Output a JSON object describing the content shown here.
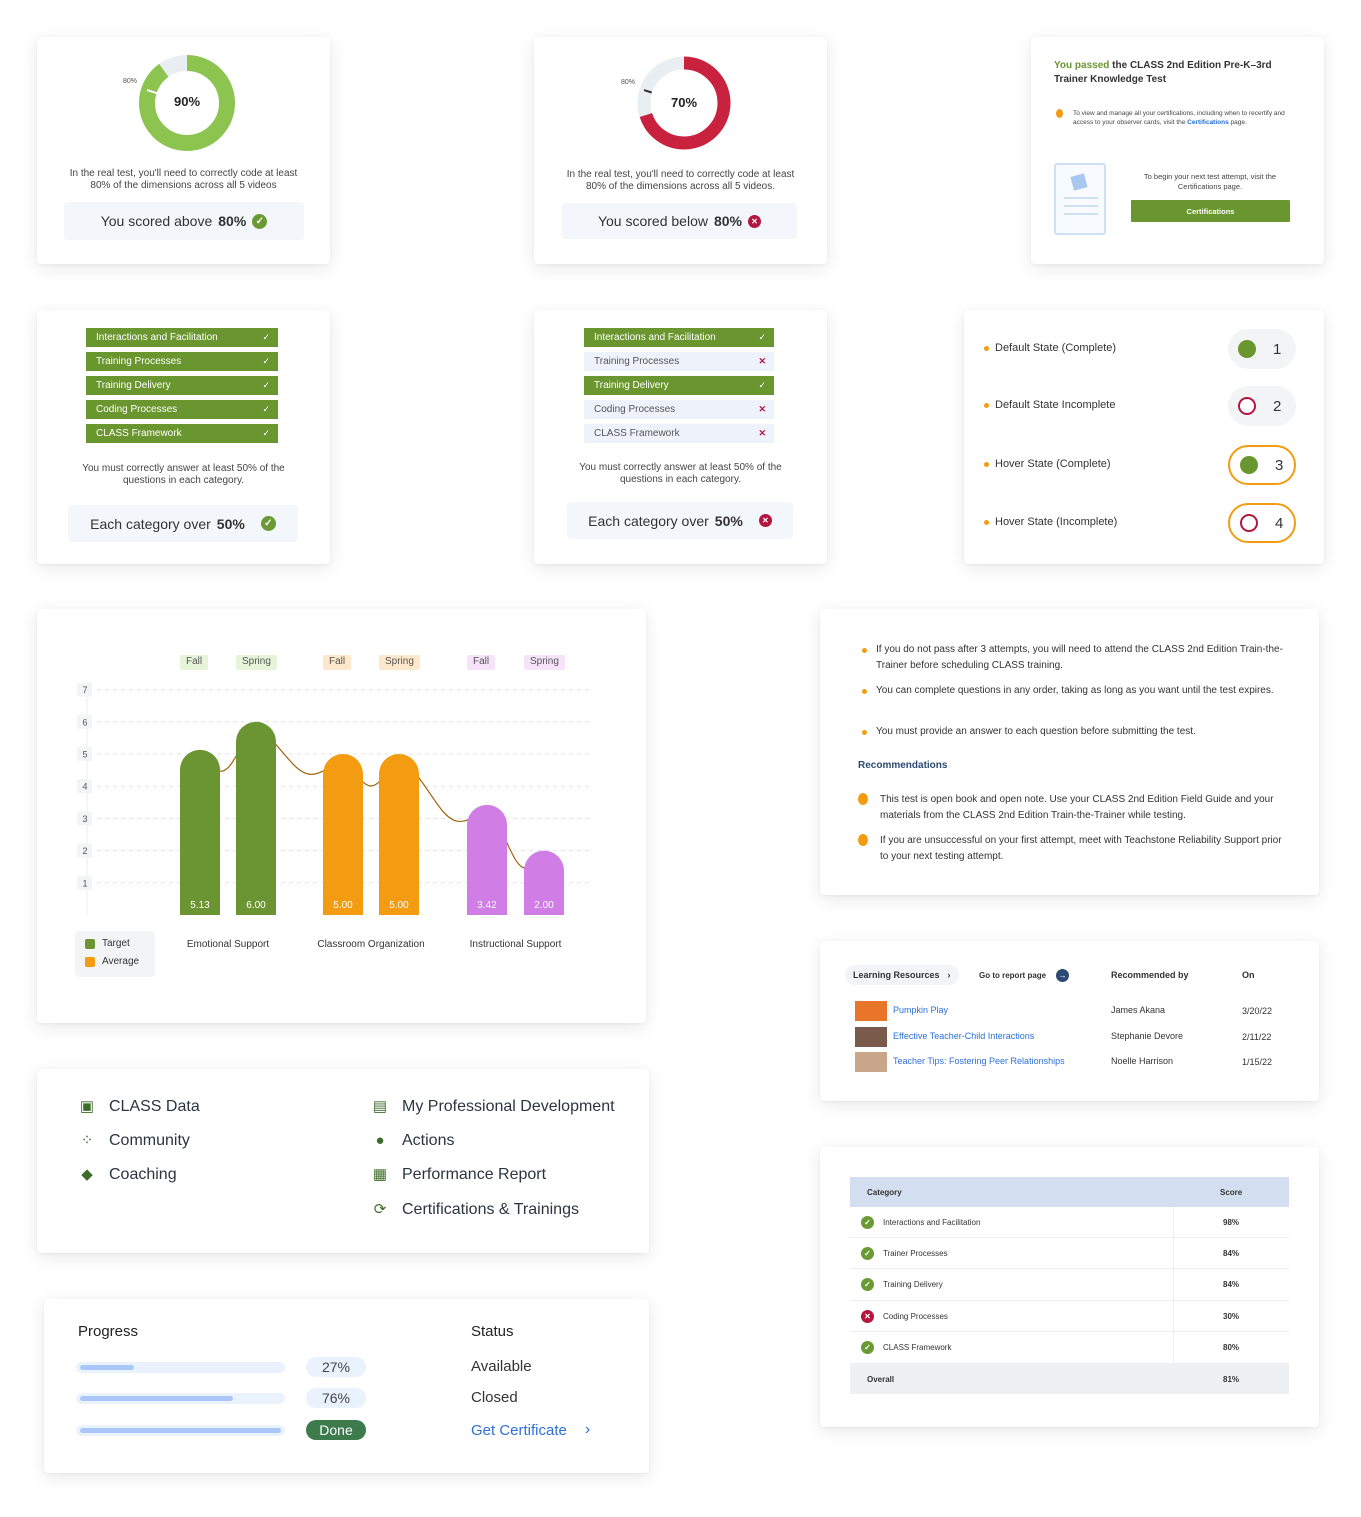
{
  "card_pass_donut": {
    "percent_label": "90%",
    "threshold_label": "80%",
    "percent_value": 90,
    "threshold_value": 80,
    "description": "In the real test, you'll need to correctly code at least 80% of the dimensions across all 5 videos",
    "result_prefix": "You scored above",
    "result_value": "80%",
    "color": "#8dc34f"
  },
  "card_fail_donut": {
    "percent_label": "70%",
    "threshold_label": "80%",
    "percent_value": 70,
    "threshold_value": 80,
    "description": "In the real test, you'll need to correctly code at least 80% of the dimensions across all 5 videos.",
    "result_prefix": "You scored below",
    "result_value": "80%",
    "color": "#c8223f"
  },
  "card_passed": {
    "highlight": "You passed",
    "title_rest": "the CLASS 2nd Edition Pre-K–3rd Trainer Knowledge Test",
    "note_text": "To view and manage all your certifications, including when to recertify and access to your observer cards, visit the",
    "note_link": "Certifications",
    "note_tail": "page.",
    "next_text": "To begin your next test attempt, visit the Certifications page.",
    "button_label": "Certifications"
  },
  "card_categories_pass": {
    "items": [
      {
        "label": "Interactions and Facilitation",
        "passed": true
      },
      {
        "label": "Training Processes",
        "passed": true
      },
      {
        "label": "Training Delivery",
        "passed": true
      },
      {
        "label": "Coding Processes",
        "passed": true
      },
      {
        "label": "CLASS Framework",
        "passed": true
      }
    ],
    "description": "You must correctly answer at least 50% of the questions in each category.",
    "result_prefix": "Each category over",
    "result_value": "50%"
  },
  "card_categories_fail": {
    "items": [
      {
        "label": "Interactions and Facilitation",
        "passed": true
      },
      {
        "label": "Training Processes",
        "passed": false
      },
      {
        "label": "Training Delivery",
        "passed": true
      },
      {
        "label": "Coding Processes",
        "passed": false
      },
      {
        "label": "CLASS Framework",
        "passed": false
      }
    ],
    "description": "You must correctly answer at least 50% of the questions in each category.",
    "result_prefix": "Each category over",
    "result_value": "50%"
  },
  "card_states": {
    "rows": [
      {
        "label": "Default State (Complete)",
        "number": "1",
        "complete": true,
        "hover": false
      },
      {
        "label": "Default State Incomplete",
        "number": "2",
        "complete": false,
        "hover": false
      },
      {
        "label": "Hover State (Complete)",
        "number": "3",
        "complete": true,
        "hover": true
      },
      {
        "label": "Hover State (Incomplete)",
        "number": "4",
        "complete": false,
        "hover": true
      }
    ]
  },
  "chart_data": {
    "type": "bar",
    "categories": [
      "Emotional Support",
      "Classroom Organization",
      "Instructional Support"
    ],
    "season_labels": [
      "Fall",
      "Spring"
    ],
    "series": [
      {
        "name": "Fall",
        "values": [
          5.13,
          5.0,
          3.42
        ],
        "value_labels": [
          "5.13",
          "5.00",
          "3.42"
        ]
      },
      {
        "name": "Spring",
        "values": [
          6.0,
          5.0,
          2.0
        ],
        "value_labels": [
          "6.00",
          "5.00",
          "2.00"
        ]
      }
    ],
    "category_colors": [
      "#6b9533",
      "#f39c12",
      "#d07de6"
    ],
    "season_tag_colors": [
      "#e6f5d9",
      "#fde8cc",
      "#f6e3fa"
    ],
    "yticks": [
      "1",
      "2",
      "3",
      "4",
      "5",
      "6",
      "7"
    ],
    "ylim": [
      0,
      7
    ],
    "legend": [
      {
        "label": "Target",
        "color": "#6b9533"
      },
      {
        "label": "Average",
        "color": "#f39c12"
      }
    ],
    "legend_position": "bottom-left",
    "grid": true
  },
  "card_notes": {
    "bullets": [
      "If you do not pass after 3 attempts, you will need to attend the CLASS 2nd Edition Train-the-Trainer before scheduling CLASS training.",
      "You can complete questions in any order, taking as long as you want until the test expires.",
      "You must provide an answer to each question before submitting the test."
    ],
    "rec_heading": "Recommendations",
    "recommendations": [
      "This test is open book and open note. Use your CLASS 2nd Edition Field Guide and your materials from the CLASS 2nd Edition Train-the-Trainer while testing.",
      "If you are unsuccessful on your first attempt, meet with Teachstone Reliability Support prior to your next testing attempt."
    ]
  },
  "card_resources": {
    "tab_label": "Learning Resources",
    "report_link": "Go to report page",
    "col_recommended": "Recommended by",
    "col_on": "On",
    "rows": [
      {
        "title": "Pumpkin Play",
        "by": "James Akana",
        "date": "3/20/22"
      },
      {
        "title": "Effective Teacher-Child Interactions",
        "by": "Stephanie Devore",
        "date": "2/11/22"
      },
      {
        "title": "Teacher Tips: Fostering Peer Relationships",
        "by": "Noelle Harrison",
        "date": "1/15/22"
      }
    ]
  },
  "card_nav": {
    "left": [
      {
        "label": "CLASS Data",
        "icon": "chart-line-icon"
      },
      {
        "label": "Community",
        "icon": "people-icon"
      },
      {
        "label": "Coaching",
        "icon": "graduation-cap-icon"
      }
    ],
    "right": [
      {
        "label": "My Professional Development",
        "icon": "growth-chart-icon"
      },
      {
        "label": "Actions",
        "icon": "hand-icon"
      },
      {
        "label": "Performance Report",
        "icon": "report-book-icon"
      },
      {
        "label": "Certifications & Trainings",
        "icon": "cycle-icon"
      }
    ]
  },
  "card_progress": {
    "progress_heading": "Progress",
    "status_heading": "Status",
    "rows": [
      {
        "progress": 0.27,
        "label": "27%",
        "status": "Available",
        "done": false,
        "link": false
      },
      {
        "progress": 0.76,
        "label": "76%",
        "status": "Closed",
        "done": false,
        "link": false
      },
      {
        "progress": 1.0,
        "label": "Done",
        "status": "Get Certificate",
        "done": true,
        "link": true
      }
    ]
  },
  "card_score_table": {
    "col_category": "Category",
    "col_score": "Score",
    "rows": [
      {
        "label": "Interactions and Facilitation",
        "score": "98%",
        "passed": true
      },
      {
        "label": "Trainer Processes",
        "score": "84%",
        "passed": true
      },
      {
        "label": "Training Delivery",
        "score": "84%",
        "passed": true
      },
      {
        "label": "Coding Processes",
        "score": "30%",
        "passed": false
      },
      {
        "label": "CLASS Framework",
        "score": "80%",
        "passed": true
      }
    ],
    "overall_label": "Overall",
    "overall_score": "81%"
  }
}
